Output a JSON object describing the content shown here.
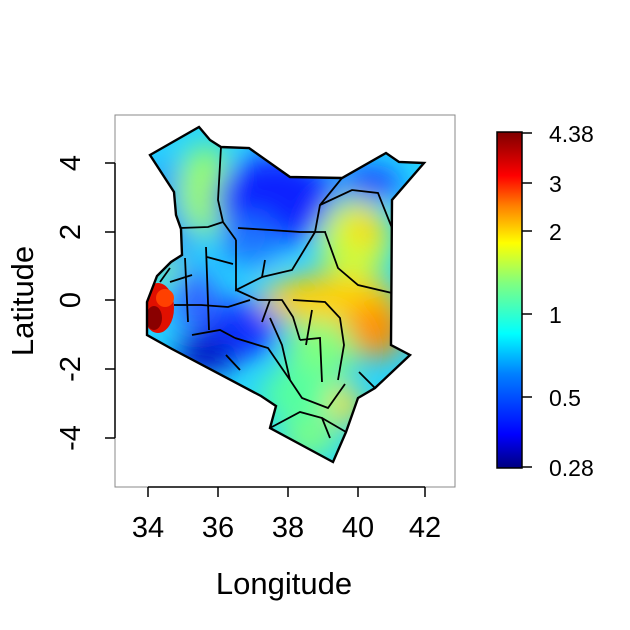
{
  "map": {
    "x_axis_label": "Longitude",
    "y_axis_label": "Latitude",
    "x_ticks": [
      "34",
      "36",
      "38",
      "40",
      "42"
    ],
    "y_ticks": [
      "4",
      "2",
      "0",
      "-2",
      "-4"
    ],
    "x_range": [
      33,
      43
    ],
    "y_range": [
      -5.2,
      5.3
    ],
    "region": "Kenya",
    "color_scale": "blue-cyan-green-yellow-red (jet)"
  },
  "legend": {
    "labels": [
      "4.38",
      "3",
      "2",
      "1",
      "0.5",
      "0.28"
    ],
    "min": 0.28,
    "max": 4.38,
    "scale": "log"
  },
  "colors": {
    "dark_blue": "#00007f",
    "blue": "#0000ff",
    "cyan": "#00ffff",
    "green": "#7fff7f",
    "yellow": "#ffff00",
    "red": "#ff0000",
    "dark_red": "#7f0000"
  }
}
